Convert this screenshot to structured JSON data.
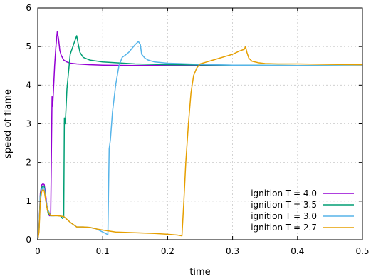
{
  "chart_data": {
    "type": "line",
    "title": "",
    "xlabel": "time",
    "ylabel": "speed of flame",
    "xlim": [
      0,
      0.5
    ],
    "ylim": [
      0,
      6
    ],
    "xticks": [
      0,
      0.1,
      0.2,
      0.3,
      0.4,
      0.5
    ],
    "xtick_labels": [
      "0",
      "0.1",
      "0.2",
      "0.3",
      "0.4",
      "0.5"
    ],
    "yticks": [
      0,
      1,
      2,
      3,
      4,
      5,
      6
    ],
    "ytick_labels": [
      "0",
      "1",
      "2",
      "3",
      "4",
      "5",
      "6"
    ],
    "grid": true,
    "legend_position": "bottom-right",
    "series": [
      {
        "name": "ignition T = 4.0",
        "color": "#9400d3",
        "x": [
          0,
          0.002,
          0.004,
          0.006,
          0.008,
          0.01,
          0.012,
          0.014,
          0.016,
          0.018,
          0.02,
          0.022,
          0.023,
          0.024,
          0.026,
          0.028,
          0.03,
          0.032,
          0.034,
          0.036,
          0.04,
          0.045,
          0.05,
          0.06,
          0.08,
          0.1,
          0.15,
          0.2,
          0.3,
          0.4,
          0.5
        ],
        "y": [
          0,
          0.3,
          1.2,
          1.42,
          1.45,
          1.43,
          1.2,
          0.9,
          0.7,
          0.62,
          0.62,
          3.7,
          3.45,
          3.8,
          4.5,
          5.0,
          5.38,
          5.2,
          4.9,
          4.78,
          4.65,
          4.6,
          4.57,
          4.55,
          4.53,
          4.52,
          4.51,
          4.51,
          4.5,
          4.5,
          4.5
        ]
      },
      {
        "name": "ignition T = 3.5",
        "color": "#009e73",
        "x": [
          0,
          0.002,
          0.004,
          0.006,
          0.008,
          0.01,
          0.012,
          0.014,
          0.016,
          0.02,
          0.025,
          0.03,
          0.035,
          0.038,
          0.04,
          0.041,
          0.042,
          0.043,
          0.045,
          0.05,
          0.055,
          0.06,
          0.062,
          0.065,
          0.07,
          0.08,
          0.1,
          0.15,
          0.2,
          0.3,
          0.4,
          0.5
        ],
        "y": [
          0,
          0.3,
          1.15,
          1.35,
          1.4,
          1.38,
          1.1,
          0.85,
          0.68,
          0.62,
          0.62,
          0.63,
          0.62,
          0.55,
          0.6,
          3.15,
          3.0,
          3.2,
          3.9,
          4.8,
          5.05,
          5.28,
          5.1,
          4.85,
          4.72,
          4.65,
          4.6,
          4.55,
          4.53,
          4.52,
          4.51,
          4.5
        ]
      },
      {
        "name": "ignition T = 3.0",
        "color": "#56b4e9",
        "x": [
          0,
          0.002,
          0.004,
          0.006,
          0.008,
          0.01,
          0.012,
          0.015,
          0.02,
          0.03,
          0.04,
          0.05,
          0.06,
          0.07,
          0.08,
          0.09,
          0.1,
          0.108,
          0.11,
          0.112,
          0.115,
          0.12,
          0.125,
          0.13,
          0.135,
          0.14,
          0.145,
          0.15,
          0.155,
          0.158,
          0.16,
          0.165,
          0.17,
          0.18,
          0.2,
          0.25,
          0.3,
          0.4,
          0.5
        ],
        "y": [
          0,
          0.25,
          1.1,
          1.3,
          1.35,
          1.33,
          1.1,
          0.8,
          0.62,
          0.62,
          0.6,
          0.45,
          0.33,
          0.33,
          0.32,
          0.28,
          0.2,
          0.13,
          2.35,
          2.6,
          3.3,
          4.0,
          4.5,
          4.72,
          4.78,
          4.85,
          4.95,
          5.05,
          5.13,
          5.05,
          4.8,
          4.7,
          4.65,
          4.6,
          4.57,
          4.54,
          4.52,
          4.51,
          4.5
        ]
      },
      {
        "name": "ignition T = 2.7",
        "color": "#e69f00",
        "x": [
          0,
          0.002,
          0.004,
          0.006,
          0.008,
          0.01,
          0.012,
          0.015,
          0.02,
          0.03,
          0.04,
          0.05,
          0.06,
          0.07,
          0.08,
          0.09,
          0.1,
          0.12,
          0.15,
          0.18,
          0.2,
          0.215,
          0.222,
          0.225,
          0.228,
          0.232,
          0.236,
          0.24,
          0.245,
          0.25,
          0.26,
          0.27,
          0.28,
          0.29,
          0.3,
          0.31,
          0.318,
          0.32,
          0.322,
          0.325,
          0.33,
          0.34,
          0.35,
          0.37,
          0.4,
          0.45,
          0.5
        ],
        "y": [
          0,
          0.2,
          1.0,
          1.25,
          1.3,
          1.27,
          1.05,
          0.75,
          0.62,
          0.62,
          0.6,
          0.45,
          0.33,
          0.33,
          0.32,
          0.28,
          0.25,
          0.2,
          0.18,
          0.16,
          0.14,
          0.12,
          0.1,
          1.0,
          2.0,
          3.0,
          3.8,
          4.25,
          4.45,
          4.55,
          4.6,
          4.65,
          4.7,
          4.75,
          4.8,
          4.88,
          4.93,
          5.0,
          4.85,
          4.7,
          4.62,
          4.58,
          4.56,
          4.55,
          4.55,
          4.54,
          4.53
        ]
      }
    ]
  }
}
